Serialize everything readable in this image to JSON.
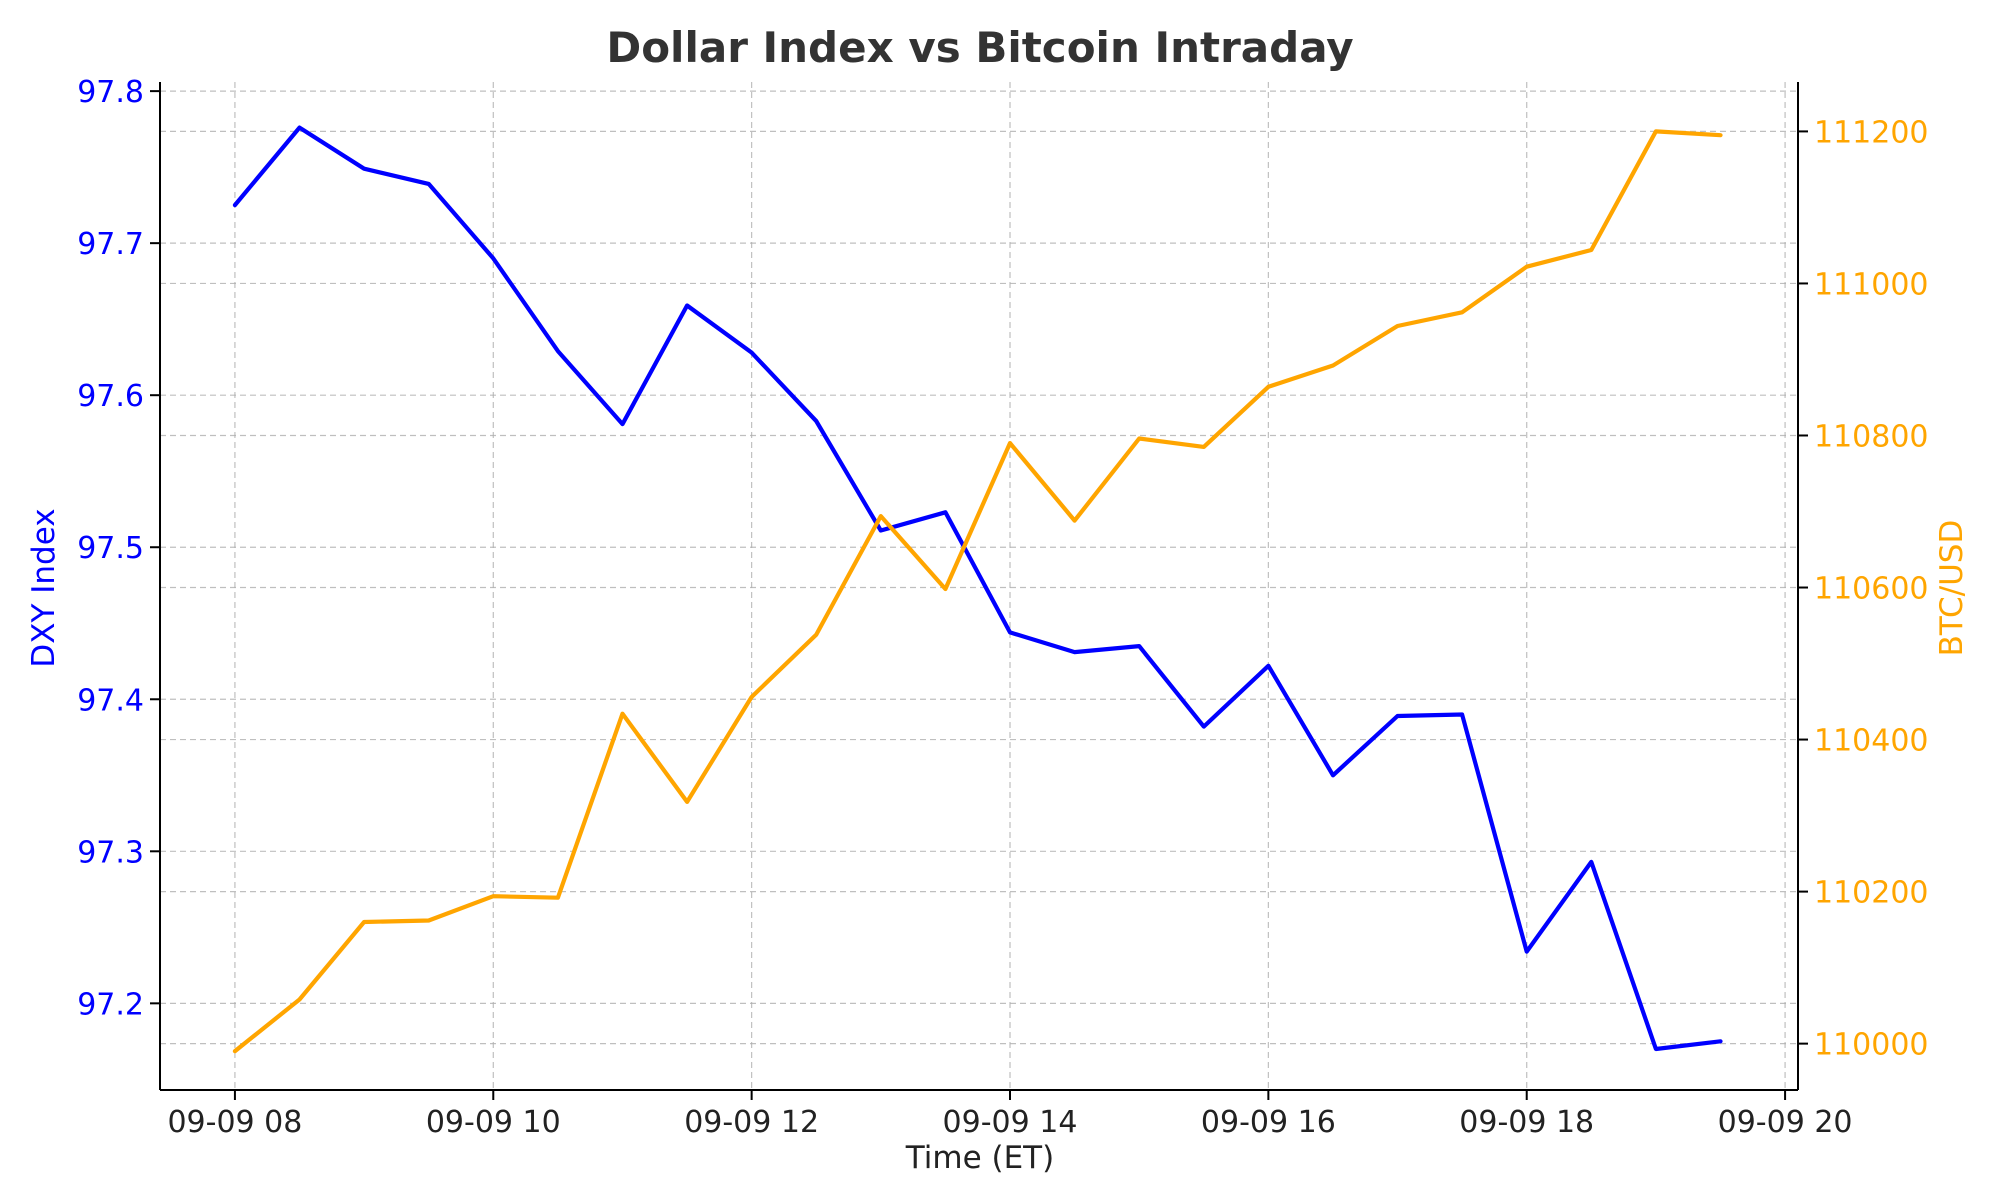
{
  "chart_data": {
    "type": "line",
    "title": "Dollar Index vs Bitcoin Intraday",
    "xlabel": "Time (ET)",
    "x_ticks": [
      "09-09 08",
      "09-09 10",
      "09-09 12",
      "09-09 14",
      "09-09 16",
      "09-09 18",
      "09-09 20"
    ],
    "x_tick_hours": [
      8,
      10,
      12,
      14,
      16,
      18,
      20
    ],
    "xlim": [
      7.42,
      20.1
    ],
    "x": [
      8.0,
      8.5,
      9.0,
      9.5,
      10.0,
      10.5,
      11.0,
      11.5,
      12.0,
      12.5,
      13.0,
      13.5,
      14.0,
      14.5,
      15.0,
      15.5,
      16.0,
      16.5,
      17.0,
      17.5,
      18.0,
      18.5,
      19.0,
      19.5
    ],
    "grid": true,
    "legend": "none",
    "y_left": {
      "label": "DXY Index",
      "color": "#0000ff",
      "ticks": [
        97.2,
        97.3,
        97.4,
        97.5,
        97.6,
        97.7,
        97.8
      ],
      "lim": [
        97.143,
        97.806
      ]
    },
    "y_right": {
      "label": "BTC/USD",
      "color": "#ffa500",
      "ticks": [
        110000,
        110200,
        110400,
        110600,
        110800,
        111000,
        111200
      ],
      "tick_labels": [
        "110000",
        "110200",
        "110400",
        "110600",
        "110800",
        "111000",
        "111200"
      ],
      "lim": [
        109939,
        111265
      ]
    },
    "series": [
      {
        "axis": "left",
        "color": "#0000ff",
        "values": [
          97.725,
          97.776,
          97.749,
          97.739,
          97.69,
          97.629,
          97.581,
          97.659,
          97.628,
          97.583,
          97.511,
          97.523,
          97.444,
          97.431,
          97.435,
          97.382,
          97.422,
          97.35,
          97.389,
          97.39,
          97.234,
          97.293,
          97.17,
          97.175
        ]
      },
      {
        "axis": "right",
        "color": "#ffa500",
        "values": [
          109990,
          110058,
          110160,
          110162,
          110194,
          110192,
          110434,
          110318,
          110456,
          110538,
          110694,
          110598,
          110790,
          110688,
          110796,
          110785,
          110864,
          110892,
          110944,
          110962,
          111022,
          111044,
          111200,
          111195
        ]
      }
    ]
  }
}
